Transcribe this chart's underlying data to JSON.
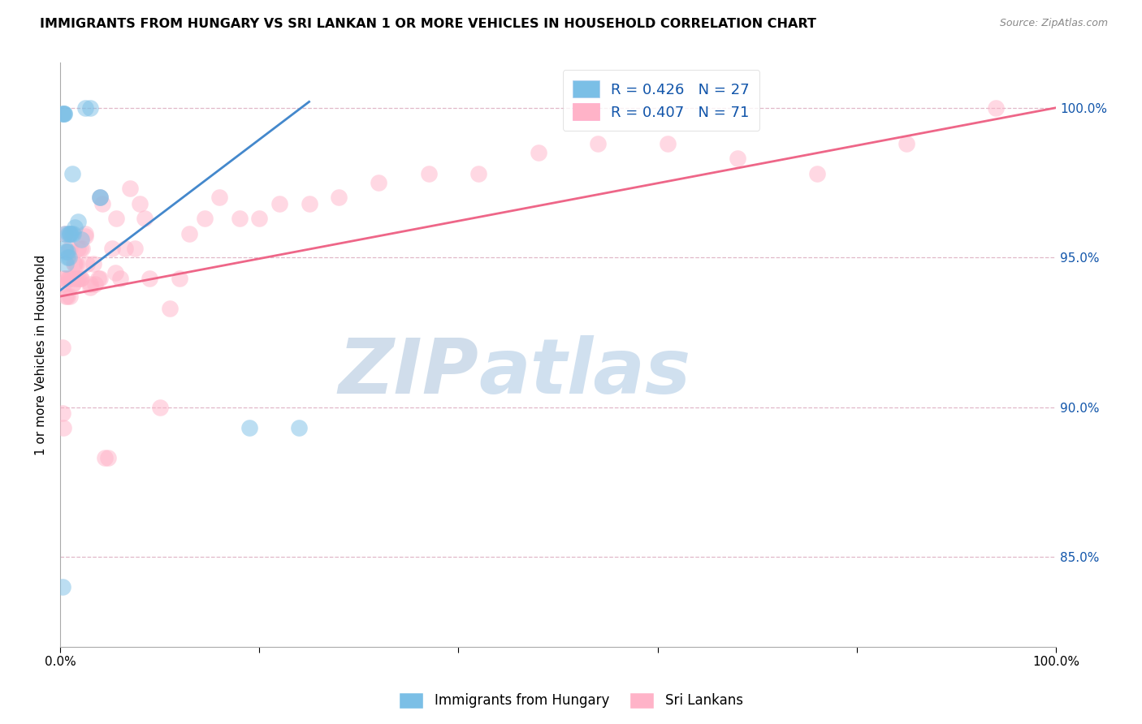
{
  "title": "IMMIGRANTS FROM HUNGARY VS SRI LANKAN 1 OR MORE VEHICLES IN HOUSEHOLD CORRELATION CHART",
  "source": "Source: ZipAtlas.com",
  "ylabel": "1 or more Vehicles in Household",
  "xmin": 0.0,
  "xmax": 1.0,
  "ymin": 0.82,
  "ymax": 1.015,
  "yticks": [
    0.85,
    0.9,
    0.95,
    1.0
  ],
  "ytick_labels": [
    "85.0%",
    "90.0%",
    "95.0%",
    "100.0%"
  ],
  "legend_r_hungary": "0.426",
  "legend_n_hungary": "27",
  "legend_r_sri": "0.407",
  "legend_n_sri": "71",
  "hungary_color": "#7bbfe6",
  "sri_color": "#ffb3c8",
  "hungary_line_color": "#4488cc",
  "sri_line_color": "#ee6688",
  "legend_text_color": "#1155aa",
  "hungary_x": [
    0.002,
    0.002,
    0.003,
    0.004,
    0.004,
    0.005,
    0.005,
    0.006,
    0.006,
    0.007,
    0.007,
    0.008,
    0.009,
    0.01,
    0.01,
    0.011,
    0.012,
    0.013,
    0.015,
    0.018,
    0.021,
    0.025,
    0.03,
    0.04,
    0.04,
    0.19,
    0.24
  ],
  "hungary_y": [
    0.84,
    0.998,
    0.998,
    0.998,
    0.998,
    0.958,
    0.953,
    0.952,
    0.948,
    0.952,
    0.95,
    0.958,
    0.95,
    0.958,
    0.958,
    0.958,
    0.978,
    0.958,
    0.96,
    0.962,
    0.956,
    1.0,
    1.0,
    0.97,
    0.97,
    0.893,
    0.893
  ],
  "sri_x": [
    0.002,
    0.003,
    0.004,
    0.005,
    0.006,
    0.007,
    0.008,
    0.009,
    0.01,
    0.011,
    0.012,
    0.013,
    0.014,
    0.015,
    0.016,
    0.017,
    0.018,
    0.019,
    0.02,
    0.021,
    0.022,
    0.025,
    0.027,
    0.03,
    0.033,
    0.035,
    0.038,
    0.04,
    0.042,
    0.045,
    0.048,
    0.052,
    0.056,
    0.06,
    0.065,
    0.07,
    0.075,
    0.08,
    0.085,
    0.09,
    0.1,
    0.11,
    0.12,
    0.13,
    0.145,
    0.16,
    0.18,
    0.2,
    0.22,
    0.25,
    0.28,
    0.32,
    0.37,
    0.42,
    0.48,
    0.54,
    0.61,
    0.68,
    0.76,
    0.85,
    0.94,
    0.002,
    0.003,
    0.005,
    0.01,
    0.015,
    0.02,
    0.025,
    0.03,
    0.04,
    0.055
  ],
  "sri_y": [
    0.898,
    0.941,
    0.943,
    0.943,
    0.937,
    0.937,
    0.943,
    0.943,
    0.937,
    0.943,
    0.941,
    0.941,
    0.948,
    0.943,
    0.948,
    0.943,
    0.953,
    0.943,
    0.943,
    0.943,
    0.953,
    0.958,
    0.948,
    0.941,
    0.948,
    0.941,
    0.943,
    0.943,
    0.968,
    0.883,
    0.883,
    0.953,
    0.963,
    0.943,
    0.953,
    0.973,
    0.953,
    0.968,
    0.963,
    0.943,
    0.9,
    0.933,
    0.943,
    0.958,
    0.963,
    0.97,
    0.963,
    0.963,
    0.968,
    0.968,
    0.97,
    0.975,
    0.978,
    0.978,
    0.985,
    0.988,
    0.988,
    0.983,
    0.978,
    0.988,
    1.0,
    0.92,
    0.893,
    0.958,
    0.953,
    0.948,
    0.953,
    0.957,
    0.94,
    0.97,
    0.945
  ],
  "hungary_line_x": [
    0.0,
    0.25
  ],
  "hungary_line_y": [
    0.939,
    1.002
  ],
  "sri_line_x": [
    0.0,
    1.0
  ],
  "sri_line_y": [
    0.937,
    1.0
  ]
}
